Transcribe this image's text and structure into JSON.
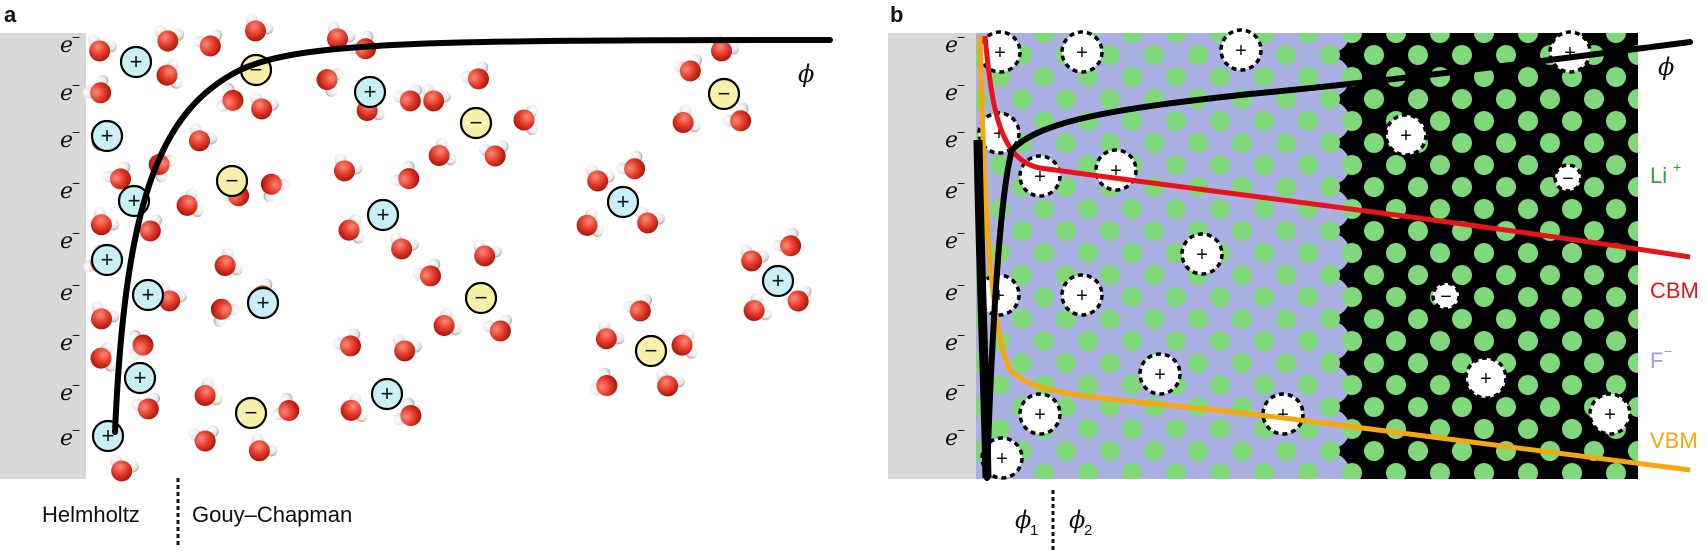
{
  "panel_a": {
    "letter": "a",
    "electron": "e",
    "electron_sup": "−",
    "phi": "ϕ",
    "helmholtz": "Helmholtz",
    "gouy": "Gouy–Chapman",
    "cation_sign": "+",
    "anion_sign": "−"
  },
  "panel_b": {
    "letter": "b",
    "electron": "e",
    "electron_sup": "−",
    "phi": "ϕ",
    "li_label": "Li",
    "li_sup": "+",
    "cbm": "CBM",
    "f_label": "F",
    "f_sup": "−",
    "vbm": "VBM",
    "phi1": "ϕ",
    "phi1_sub": "1",
    "phi2": "ϕ",
    "phi2_sub": "2",
    "vac_plus": "+",
    "vac_minus": "−"
  },
  "colors": {
    "electrode": "#d8d8d8",
    "cation_fill": "#c8f0f6",
    "anion_fill": "#f8f0a8",
    "oxygen": "#e33b2a",
    "hydrogen": "#f2f2f2",
    "crystal_bg": "#000000",
    "fluoride": "#aab1e2",
    "lithium": "#7fd87a",
    "cbm": "#e8141a",
    "vbm": "#f5a70f",
    "li_text": "#2aa63a",
    "f_text": "#9c9ddc"
  }
}
